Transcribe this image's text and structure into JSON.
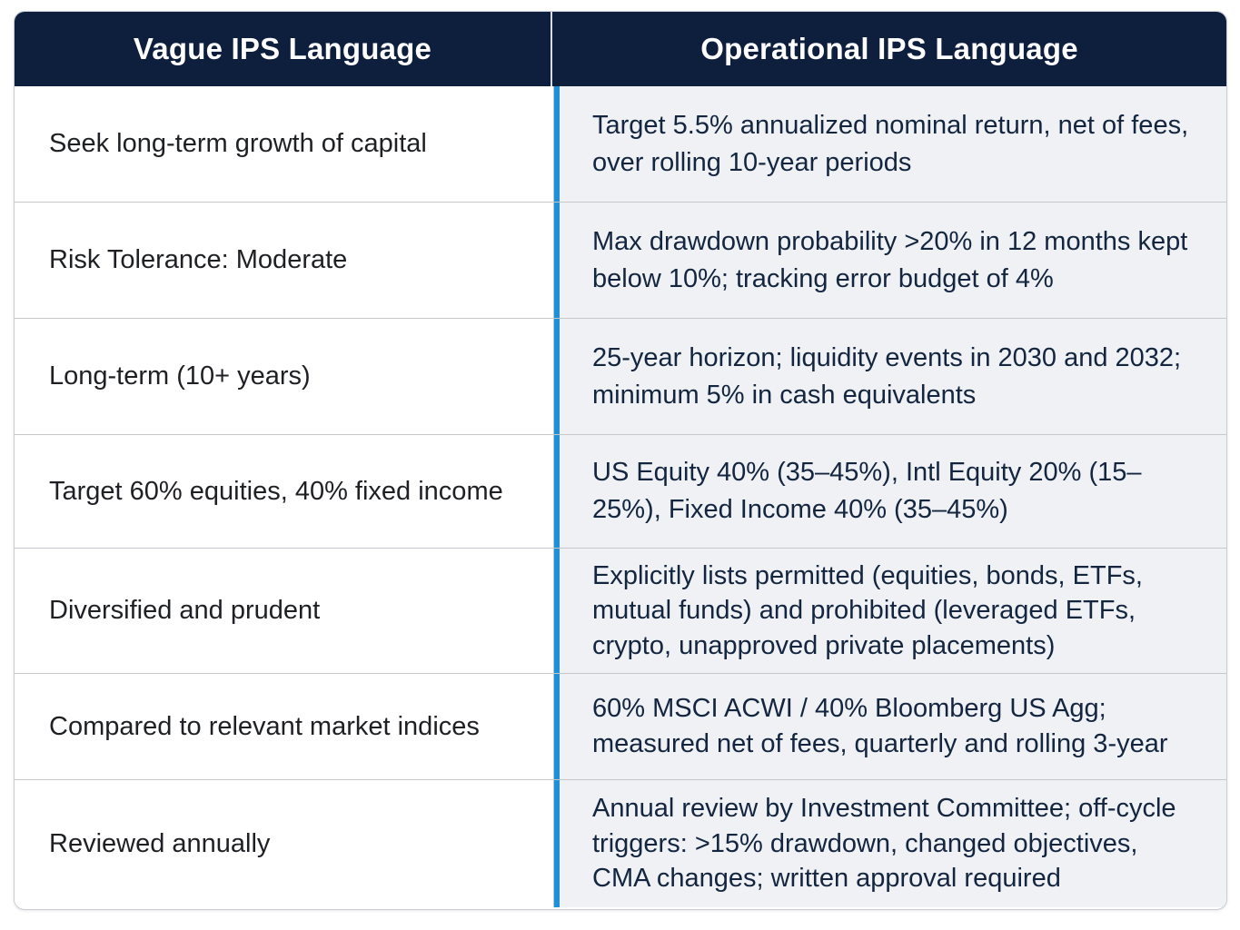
{
  "header": {
    "left": "Vague IPS Language",
    "right": "Operational IPS Language"
  },
  "rows": [
    {
      "vague": "Seek long-term growth of capital",
      "operational": "Target 5.5% annualized nominal return, net of fees, over rolling 10-year periods"
    },
    {
      "vague": "Risk Tolerance: Moderate",
      "operational": "Max drawdown probability >20% in 12 months kept below 10%; tracking error budget of 4%"
    },
    {
      "vague": "Long-term (10+ years)",
      "operational": "25-year horizon; liquidity events in 2030 and 2032; minimum 5% in cash equivalents"
    },
    {
      "vague": "Target 60% equities, 40% fixed income",
      "operational": "US Equity 40% (35–45%), Intl Equity 20% (15–25%), Fixed Income 40% (35–45%)"
    },
    {
      "vague": "Diversified and prudent",
      "operational": "Explicitly lists permitted (equities, bonds, ETFs, mutual funds) and prohibited (leveraged ETFs, crypto, unapproved private placements)"
    },
    {
      "vague": "Compared to relevant market indices",
      "operational": "60% MSCI ACWI / 40% Bloomberg US Agg; measured net of fees, quarterly and rolling 3-year"
    },
    {
      "vague": "Reviewed annually",
      "operational": "Annual review by Investment Committee; off-cycle triggers: >15% drawdown, changed objectives, CMA changes; written approval required"
    }
  ],
  "colors": {
    "header_bg": "#0e1e3d",
    "accent_bar": "#1f8fd8",
    "right_bg": "#eff1f4"
  }
}
